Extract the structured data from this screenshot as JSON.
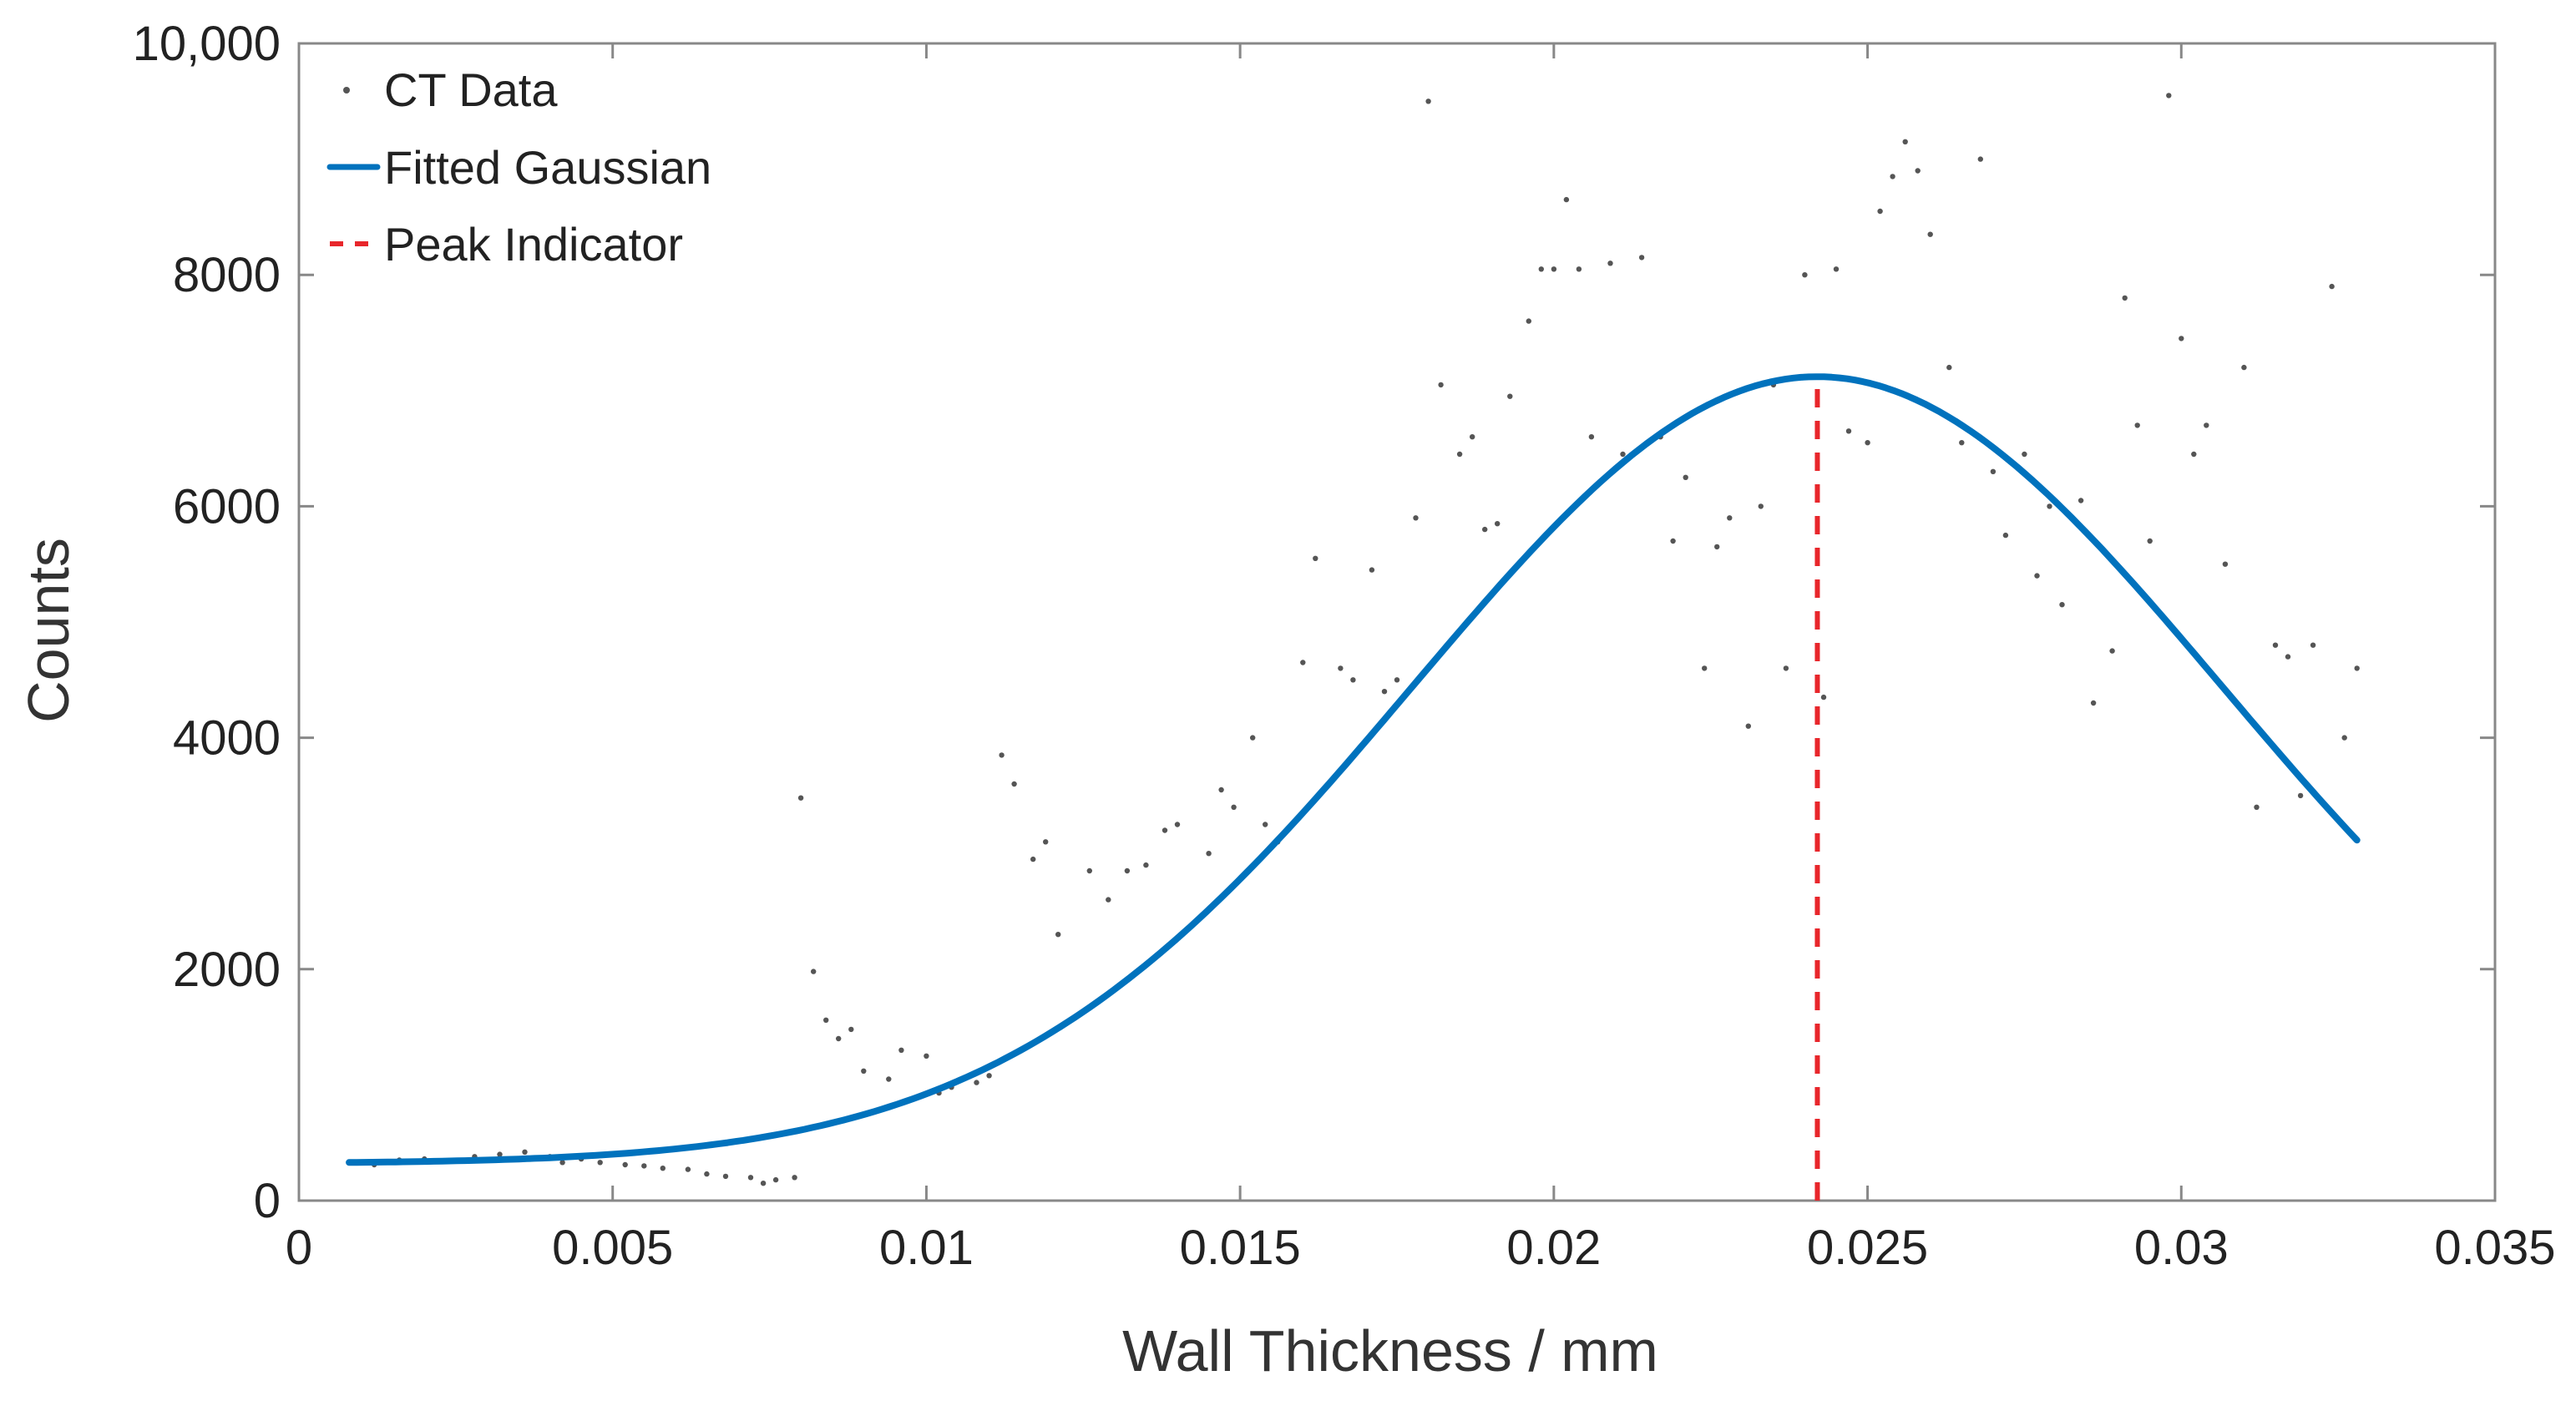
{
  "chart_data": {
    "type": "line",
    "xlabel": "Wall Thickness / mm",
    "ylabel": "Counts",
    "xlim": [
      0,
      0.035
    ],
    "ylim": [
      0,
      10000
    ],
    "xticks": [
      0,
      0.005,
      0.01,
      0.015,
      0.02,
      0.025,
      0.03,
      0.035
    ],
    "xtick_labels": [
      "0",
      "0.005",
      "0.01",
      "0.015",
      "0.02",
      "0.025",
      "0.03",
      "0.035"
    ],
    "yticks": [
      0,
      2000,
      4000,
      6000,
      8000,
      10000
    ],
    "ytick_labels": [
      "0",
      "2000",
      "4000",
      "6000",
      "8000",
      "10,000"
    ],
    "grid": false,
    "legend_position": "top-left",
    "colors": {
      "data": "#555555",
      "fit": "#0072BD",
      "peak": "#E8262B",
      "axis": "#888888"
    },
    "legend": [
      {
        "label": "CT Data",
        "style": "dot"
      },
      {
        "label": "Fitted Gaussian",
        "style": "line"
      },
      {
        "label": "Peak Indicator",
        "style": "dashed"
      }
    ],
    "series": [
      {
        "name": "CT Data",
        "kind": "scatter",
        "points": [
          [
            0.0008,
            330
          ],
          [
            0.0012,
            310
          ],
          [
            0.0016,
            350
          ],
          [
            0.002,
            360
          ],
          [
            0.0024,
            340
          ],
          [
            0.0028,
            380
          ],
          [
            0.0032,
            400
          ],
          [
            0.0036,
            420
          ],
          [
            0.004,
            380
          ],
          [
            0.0042,
            330
          ],
          [
            0.0045,
            360
          ],
          [
            0.0048,
            330
          ],
          [
            0.0052,
            310
          ],
          [
            0.0055,
            300
          ],
          [
            0.0058,
            280
          ],
          [
            0.0062,
            270
          ],
          [
            0.0065,
            230
          ],
          [
            0.0068,
            210
          ],
          [
            0.0072,
            200
          ],
          [
            0.0074,
            150
          ],
          [
            0.0076,
            180
          ],
          [
            0.0079,
            200
          ],
          [
            0.008,
            3480
          ],
          [
            0.0082,
            1980
          ],
          [
            0.0084,
            1560
          ],
          [
            0.0086,
            1400
          ],
          [
            0.0088,
            1480
          ],
          [
            0.009,
            1120
          ],
          [
            0.0094,
            1050
          ],
          [
            0.0096,
            1300
          ],
          [
            0.01,
            1250
          ],
          [
            0.0102,
            930
          ],
          [
            0.0104,
            980
          ],
          [
            0.0108,
            1020
          ],
          [
            0.011,
            1080
          ],
          [
            0.0112,
            3850
          ],
          [
            0.0114,
            3600
          ],
          [
            0.0117,
            2950
          ],
          [
            0.0119,
            3100
          ],
          [
            0.0121,
            2300
          ],
          [
            0.0126,
            2850
          ],
          [
            0.0129,
            2600
          ],
          [
            0.0132,
            2850
          ],
          [
            0.0135,
            2900
          ],
          [
            0.0138,
            3200
          ],
          [
            0.014,
            3250
          ],
          [
            0.0145,
            3000
          ],
          [
            0.0147,
            3550
          ],
          [
            0.0149,
            3400
          ],
          [
            0.0152,
            4000
          ],
          [
            0.0154,
            3250
          ],
          [
            0.0156,
            3100
          ],
          [
            0.016,
            4650
          ],
          [
            0.0162,
            5550
          ],
          [
            0.0166,
            4600
          ],
          [
            0.0168,
            4500
          ],
          [
            0.0171,
            5450
          ],
          [
            0.0173,
            4400
          ],
          [
            0.0175,
            4500
          ],
          [
            0.0178,
            5900
          ],
          [
            0.018,
            9500
          ],
          [
            0.0182,
            7050
          ],
          [
            0.0185,
            6450
          ],
          [
            0.0187,
            6600
          ],
          [
            0.0189,
            5800
          ],
          [
            0.0191,
            5850
          ],
          [
            0.0193,
            6950
          ],
          [
            0.0196,
            7600
          ],
          [
            0.0198,
            8050
          ],
          [
            0.02,
            8050
          ],
          [
            0.0202,
            8650
          ],
          [
            0.0204,
            8050
          ],
          [
            0.0206,
            6600
          ],
          [
            0.0209,
            8100
          ],
          [
            0.0211,
            6450
          ],
          [
            0.0214,
            8150
          ],
          [
            0.0217,
            6600
          ],
          [
            0.0219,
            5700
          ],
          [
            0.0221,
            6250
          ],
          [
            0.0224,
            4600
          ],
          [
            0.0226,
            5650
          ],
          [
            0.0228,
            5900
          ],
          [
            0.0231,
            4100
          ],
          [
            0.0233,
            6000
          ],
          [
            0.0235,
            7050
          ],
          [
            0.0237,
            4600
          ],
          [
            0.024,
            8000
          ],
          [
            0.0243,
            4350
          ],
          [
            0.0245,
            8050
          ],
          [
            0.0247,
            6650
          ],
          [
            0.025,
            6550
          ],
          [
            0.0252,
            8550
          ],
          [
            0.0254,
            8850
          ],
          [
            0.0256,
            9150
          ],
          [
            0.0258,
            8900
          ],
          [
            0.026,
            8350
          ],
          [
            0.0263,
            7200
          ],
          [
            0.0265,
            6550
          ],
          [
            0.0268,
            9000
          ],
          [
            0.027,
            6300
          ],
          [
            0.0272,
            5750
          ],
          [
            0.0275,
            6450
          ],
          [
            0.0277,
            5400
          ],
          [
            0.0279,
            6000
          ],
          [
            0.0281,
            5150
          ],
          [
            0.0284,
            6050
          ],
          [
            0.0286,
            4300
          ],
          [
            0.0289,
            4750
          ],
          [
            0.0291,
            7800
          ],
          [
            0.0293,
            6700
          ],
          [
            0.0295,
            5700
          ],
          [
            0.0298,
            9550
          ],
          [
            0.03,
            7450
          ],
          [
            0.0302,
            6450
          ],
          [
            0.0304,
            6700
          ],
          [
            0.0307,
            5500
          ],
          [
            0.031,
            7200
          ],
          [
            0.0312,
            3400
          ],
          [
            0.0315,
            4800
          ],
          [
            0.0317,
            4700
          ],
          [
            0.0319,
            3500
          ],
          [
            0.0321,
            4800
          ],
          [
            0.0324,
            7900
          ],
          [
            0.0326,
            4000
          ],
          [
            0.0328,
            4600
          ]
        ]
      },
      {
        "name": "Fitted Gaussian",
        "kind": "line",
        "function": "gaussian",
        "amplitude": 6800,
        "center": 0.0242,
        "sigma": 0.00645,
        "offset": 320,
        "x_range": [
          0.0008,
          0.0328
        ]
      },
      {
        "name": "Peak Indicator",
        "kind": "vline",
        "x": 0.0242,
        "y_range": [
          0,
          7100
        ]
      }
    ]
  }
}
